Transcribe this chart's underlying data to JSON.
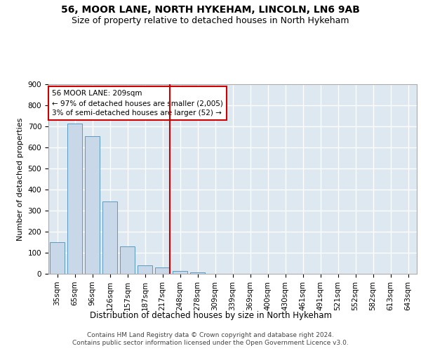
{
  "title": "56, MOOR LANE, NORTH HYKEHAM, LINCOLN, LN6 9AB",
  "subtitle": "Size of property relative to detached houses in North Hykeham",
  "xlabel": "Distribution of detached houses by size in North Hykeham",
  "ylabel": "Number of detached properties",
  "categories": [
    "35sqm",
    "65sqm",
    "96sqm",
    "126sqm",
    "157sqm",
    "187sqm",
    "217sqm",
    "248sqm",
    "278sqm",
    "309sqm",
    "339sqm",
    "369sqm",
    "400sqm",
    "430sqm",
    "461sqm",
    "491sqm",
    "521sqm",
    "552sqm",
    "582sqm",
    "613sqm",
    "643sqm"
  ],
  "values": [
    150,
    715,
    655,
    343,
    130,
    40,
    30,
    12,
    8,
    0,
    0,
    0,
    0,
    0,
    0,
    0,
    0,
    0,
    0,
    0,
    0
  ],
  "bar_color": "#c8d8e8",
  "bar_edge_color": "#5a9abf",
  "vline_index": 6,
  "vline_color": "#cc0000",
  "annotation_text": "56 MOOR LANE: 209sqm\n← 97% of detached houses are smaller (2,005)\n3% of semi-detached houses are larger (52) →",
  "annotation_box_color": "#ffffff",
  "annotation_box_edge": "#cc0000",
  "ylim": [
    0,
    900
  ],
  "yticks": [
    0,
    100,
    200,
    300,
    400,
    500,
    600,
    700,
    800,
    900
  ],
  "background_color": "#dde8f0",
  "grid_color": "#ffffff",
  "footer_line1": "Contains HM Land Registry data © Crown copyright and database right 2024.",
  "footer_line2": "Contains public sector information licensed under the Open Government Licence v3.0.",
  "title_fontsize": 10,
  "subtitle_fontsize": 9,
  "xlabel_fontsize": 8.5,
  "ylabel_fontsize": 8,
  "tick_fontsize": 7.5,
  "footer_fontsize": 6.5
}
